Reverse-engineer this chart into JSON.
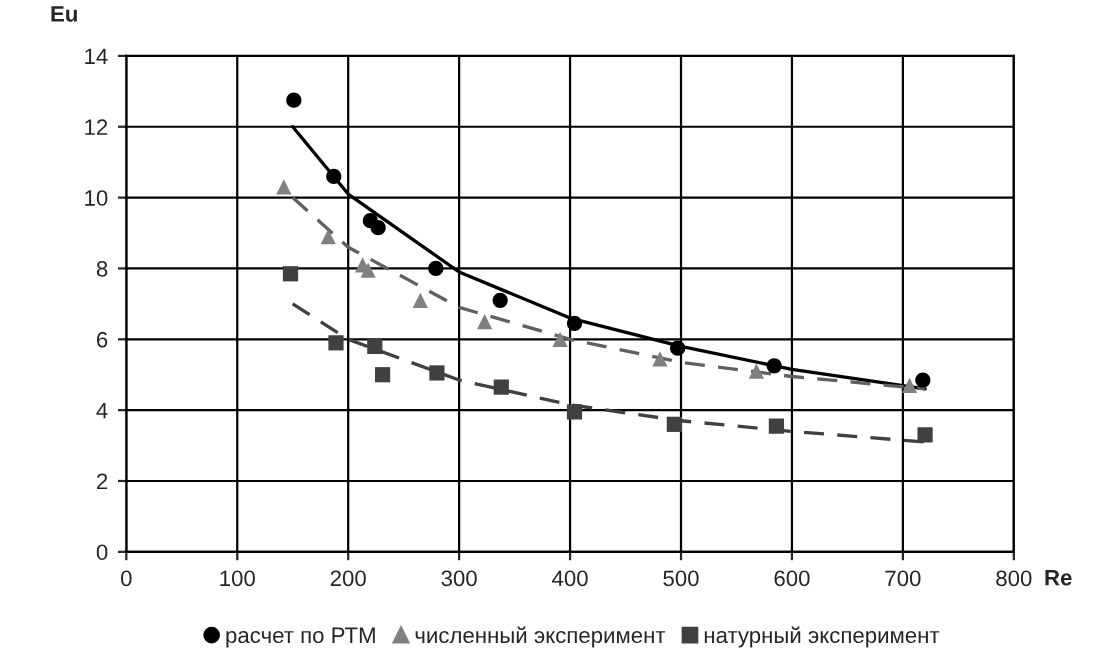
{
  "chart_data": {
    "type": "scatter",
    "xlabel": "Re",
    "ylabel": "Eu",
    "xlim": [
      0,
      800
    ],
    "xticks": [
      0,
      100,
      200,
      300,
      400,
      500,
      600,
      700,
      800
    ],
    "ylim": [
      0,
      14
    ],
    "yticks": [
      0,
      2,
      4,
      6,
      8,
      10,
      12,
      14
    ],
    "grid": true,
    "legend": "bottom",
    "series": [
      {
        "name": "расчет по РТМ",
        "marker": "circle",
        "color": "#000000",
        "x": [
          151,
          187,
          220,
          227,
          279,
          337,
          404,
          497,
          584,
          718
        ],
        "values": [
          12.75,
          10.6,
          9.35,
          9.15,
          8.0,
          7.1,
          6.45,
          5.75,
          5.25,
          4.85
        ]
      },
      {
        "name": "численный эксперимент",
        "marker": "triangle",
        "color": "#808080",
        "x": [
          142,
          182,
          213,
          218,
          265,
          323,
          391,
          481,
          568,
          706
        ],
        "values": [
          10.3,
          8.9,
          8.1,
          7.95,
          7.1,
          6.5,
          6.0,
          5.45,
          5.1,
          4.7
        ]
      },
      {
        "name": "натурный эксперимент",
        "marker": "square",
        "color": "#404040",
        "x": [
          148,
          189,
          224,
          231,
          280,
          338,
          404,
          494,
          586,
          720
        ],
        "values": [
          7.85,
          5.9,
          5.8,
          5.0,
          5.05,
          4.65,
          3.95,
          3.6,
          3.55,
          3.3
        ]
      },
      {
        "type": "line",
        "line_style": "solid",
        "marker": "none",
        "color": "#000000",
        "x": [
          150,
          200,
          300,
          400,
          500,
          600,
          720
        ],
        "values": [
          12.0,
          10.1,
          7.9,
          6.6,
          5.8,
          5.15,
          4.6
        ]
      },
      {
        "type": "line",
        "line_style": "dashed",
        "marker": "none",
        "color": "#606060",
        "x": [
          150,
          200,
          300,
          400,
          500,
          600,
          720
        ],
        "values": [
          10.0,
          8.6,
          6.9,
          6.0,
          5.35,
          4.95,
          4.6
        ]
      },
      {
        "type": "line",
        "line_style": "dashed",
        "marker": "none",
        "color": "#404040",
        "x": [
          150,
          200,
          300,
          400,
          500,
          600,
          720
        ],
        "values": [
          7.0,
          6.0,
          4.85,
          4.15,
          3.7,
          3.4,
          3.1
        ]
      }
    ]
  }
}
